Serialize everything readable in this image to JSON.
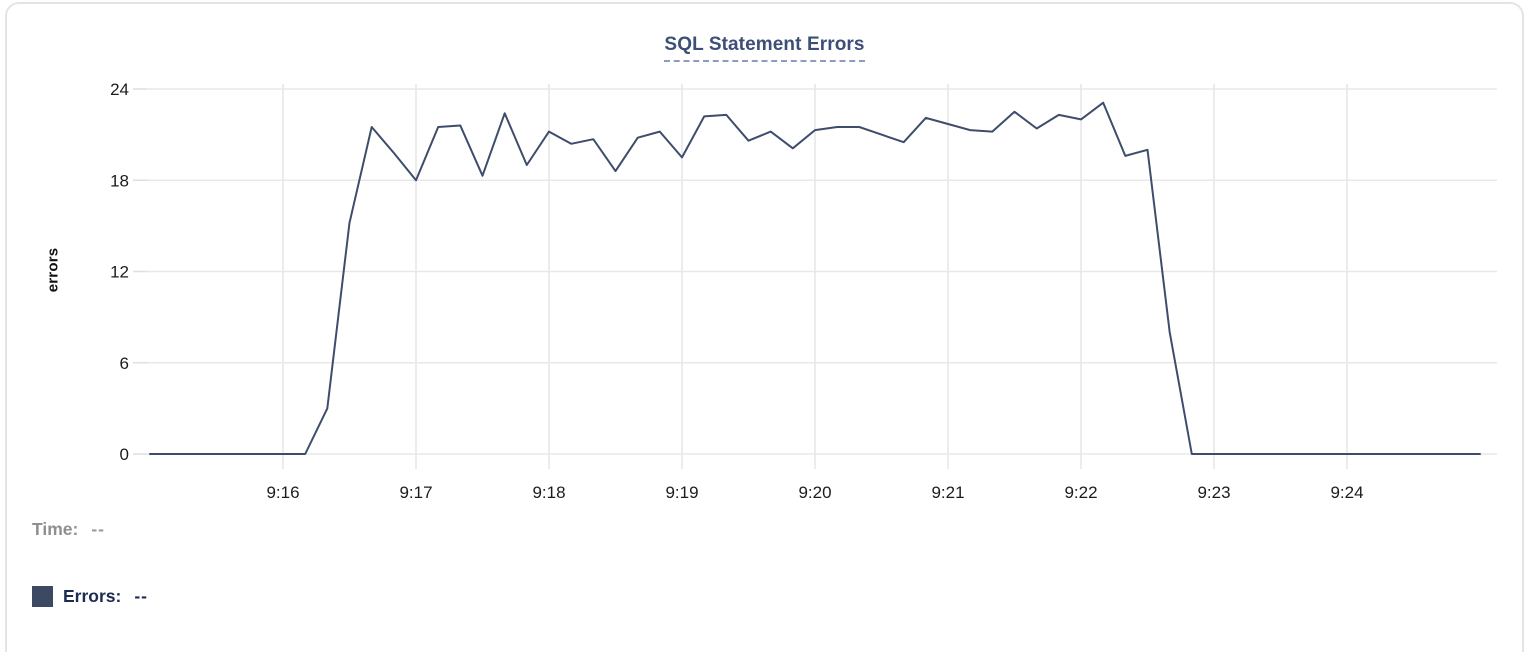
{
  "chart_data": {
    "type": "line",
    "title": "SQL Statement Errors",
    "xlabel": "",
    "ylabel": "errors",
    "ylim": [
      0,
      24
    ],
    "y_ticks": [
      0,
      6,
      12,
      18,
      24
    ],
    "x_ticks": [
      "9:16",
      "9:17",
      "9:18",
      "9:19",
      "9:20",
      "9:21",
      "9:22",
      "9:23",
      "9:24"
    ],
    "x_range": [
      "9:15:00",
      "9:25:00"
    ],
    "grid": true,
    "legend_position": "bottom-left",
    "colors": {
      "grid": "#e8e8e8",
      "axis_tick": "#e0e0e0",
      "line": "#3e4d6b"
    },
    "series": [
      {
        "name": "Errors",
        "color": "#3e4d6b",
        "start_time": "9:15:00",
        "interval_seconds": 10,
        "values": [
          0,
          0,
          0,
          0,
          0,
          0,
          0,
          0,
          3,
          15.2,
          21.5,
          19.8,
          18,
          21.5,
          21.6,
          18.3,
          22.4,
          19,
          21.2,
          20.4,
          20.7,
          18.6,
          20.8,
          21.2,
          19.5,
          22.2,
          22.3,
          20.6,
          21.2,
          20.1,
          21.3,
          21.5,
          21.5,
          21,
          20.5,
          22.1,
          21.7,
          21.3,
          21.2,
          22.5,
          21.4,
          22.3,
          22,
          23.1,
          19.6,
          20,
          8,
          0,
          0,
          0,
          0,
          0,
          0,
          0,
          0,
          0,
          0,
          0,
          0,
          0,
          0
        ]
      }
    ]
  },
  "footer": {
    "time_label": "Time:",
    "time_value": "--",
    "series_label": "Errors:",
    "series_value": "--",
    "swatch_color": "#3c4963"
  }
}
